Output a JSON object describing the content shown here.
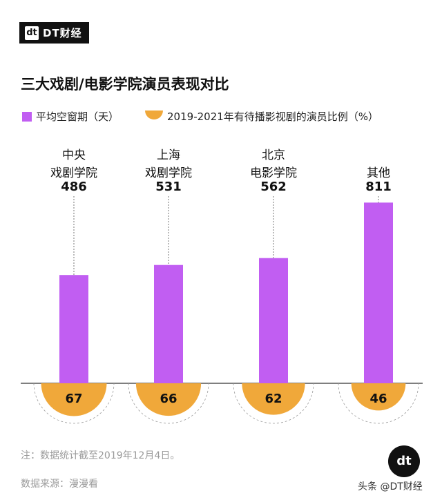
{
  "brand": {
    "logo_mark": "dt",
    "logo_text": "DT财经"
  },
  "chart_data": {
    "type": "bar",
    "title": "三大戏剧/电影学院演员表现对比",
    "categories": [
      [
        "中央",
        "戏剧学院"
      ],
      [
        "上海",
        "戏剧学院"
      ],
      [
        "北京",
        "电影学院"
      ],
      [
        "其他"
      ]
    ],
    "series": [
      {
        "name": "平均空窗期（天）",
        "values": [
          486,
          531,
          562,
          811
        ],
        "color": "#c15ef2"
      },
      {
        "name": "2019-2021年有待播影视剧的演员比例（%）",
        "values": [
          67,
          66,
          62,
          46
        ],
        "color": "#f0a83a"
      }
    ],
    "ylim": [
      0,
      840
    ],
    "legend": "top-left"
  },
  "note": "注：数据统计截至2019年12月4日。",
  "source": "数据来源：漫漫看",
  "corner_logo": "dt",
  "credit": "头条 @DT财经"
}
